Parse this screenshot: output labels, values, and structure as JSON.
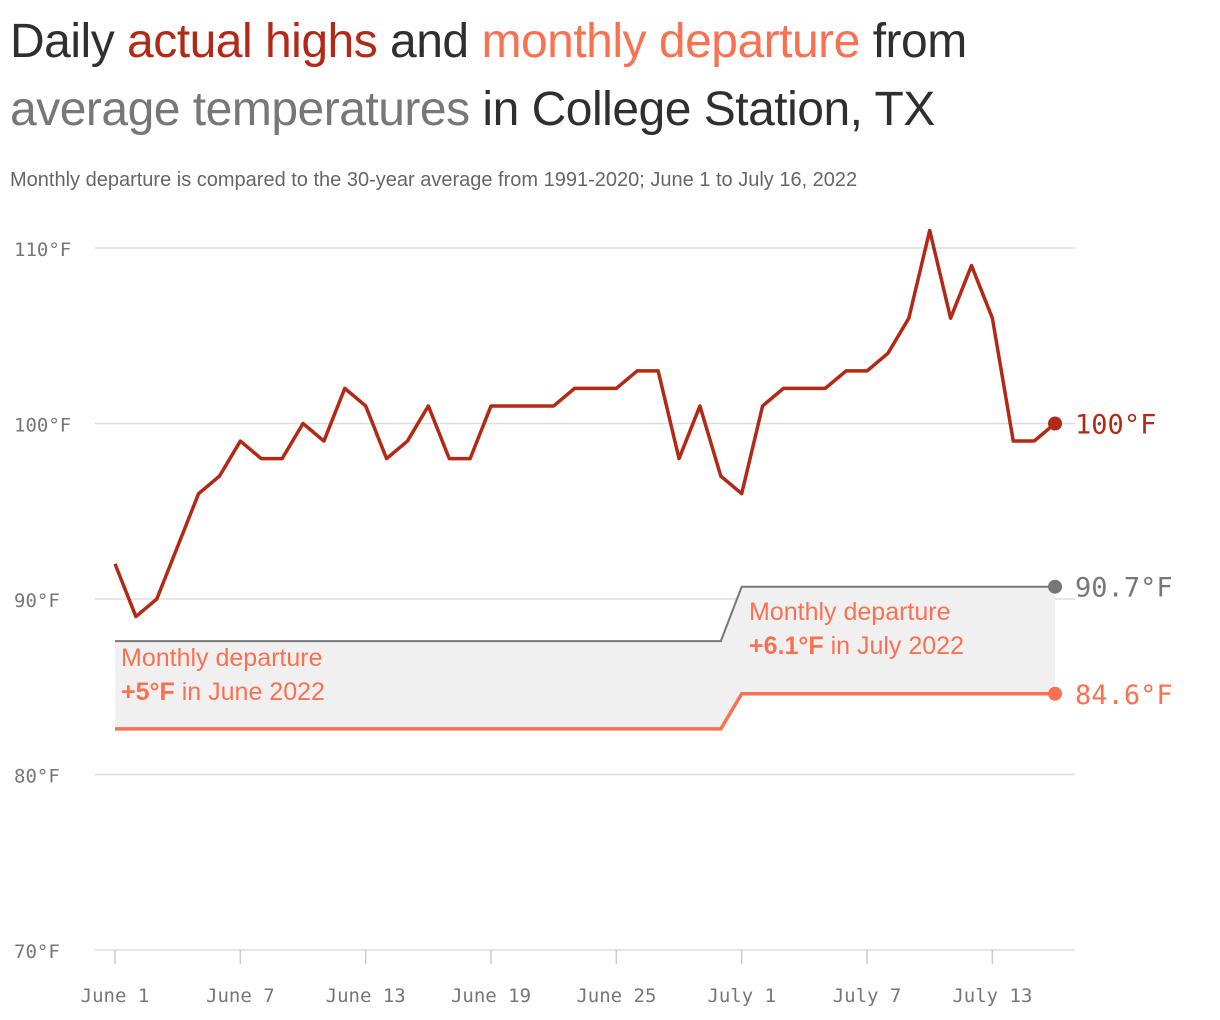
{
  "title": {
    "part1": "Daily ",
    "part2": "actual highs",
    "part3": " and ",
    "part4": "monthly departure",
    "part5": " from ",
    "part6": "average temperatures",
    "part7": " in College Station, TX"
  },
  "subtitle": "Monthly departure is compared to the 30-year average from 1991-2020; June 1 to July 16, 2022",
  "colors": {
    "actual": "#b22a15",
    "departure": "#fa7152",
    "average": "#777777",
    "band": "#f0f0f0",
    "grid": "#dddddd",
    "text": "#2f2f2f"
  },
  "chart_data": {
    "type": "line",
    "start_date": "2022-06-01",
    "x_ticks": [
      "June 1",
      "June 7",
      "June 13",
      "June 19",
      "June 25",
      "July 1",
      "July 7",
      "July 13"
    ],
    "y_ticks": [
      "70°F",
      "80°F",
      "90°F",
      "100°F",
      "110°F"
    ],
    "ylim": [
      70,
      112
    ],
    "grid": true,
    "series": [
      {
        "name": "actual highs",
        "values": [
          92,
          89,
          90,
          93,
          96,
          97,
          99,
          98,
          98,
          100,
          99,
          102,
          101,
          98,
          99,
          101,
          98,
          98,
          101,
          101,
          101,
          101,
          102,
          102,
          102,
          103,
          103,
          98,
          101,
          97,
          96,
          101,
          102,
          102,
          102,
          103,
          103,
          104,
          106,
          111,
          106,
          109,
          106,
          99,
          99,
          100
        ],
        "end_label": "100°F"
      },
      {
        "name": "average temperatures",
        "june_value": 87.6,
        "july_value": 90.7,
        "end_label": "90.7°F"
      },
      {
        "name": "monthly departure",
        "june_value": 82.6,
        "july_value": 84.6,
        "end_label": "84.6°F"
      }
    ],
    "annotations": {
      "june_line1": "Monthly departure",
      "june_bold": "+5°F",
      "june_rest": " in June 2022",
      "july_line1": "Monthly departure",
      "july_bold": "+6.1°F",
      "july_rest": " in July 2022"
    }
  }
}
